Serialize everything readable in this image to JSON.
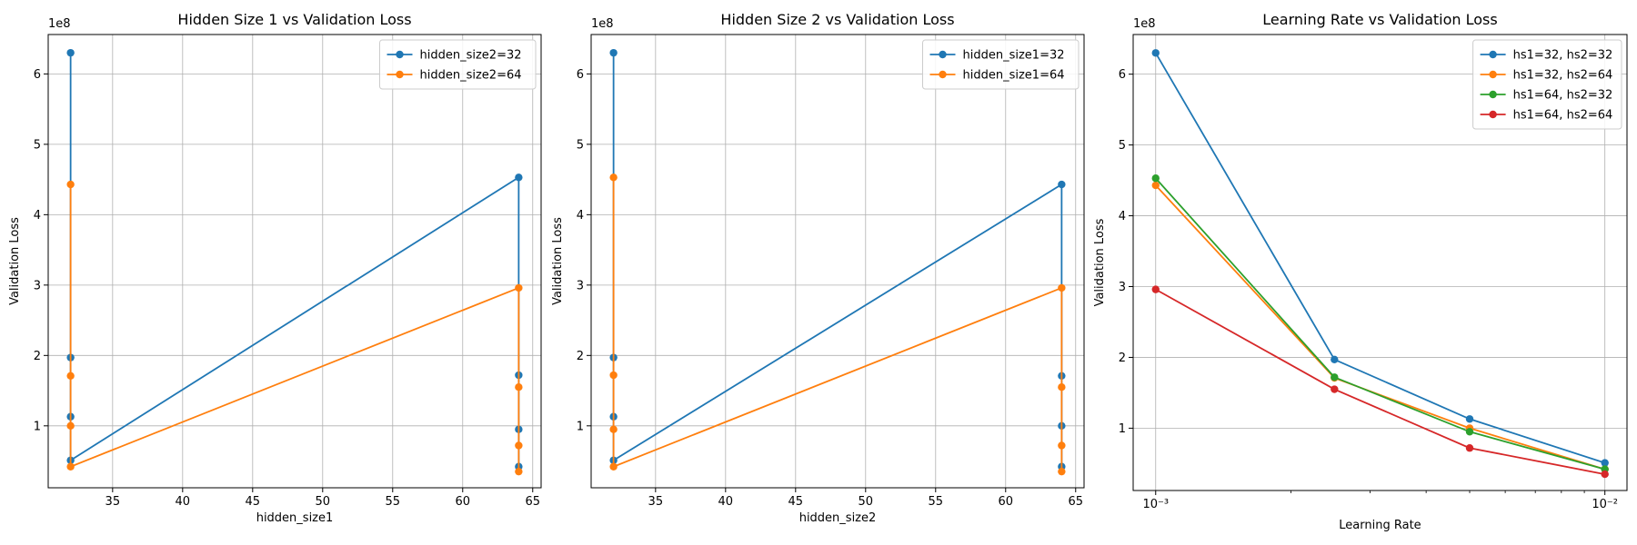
{
  "colors": {
    "C0": "#1f77b4",
    "C1": "#ff7f0e",
    "C2": "#2ca02c",
    "C3": "#d62728",
    "grid": "#b0b0b0"
  },
  "chart_data": [
    {
      "type": "line",
      "title": "Hidden Size 1 vs Validation Loss",
      "xlabel": "hidden_size1",
      "ylabel": "Validation Loss",
      "y_multiplier": "1e8",
      "xscale": "linear",
      "xlim": [
        30.4,
        65.6
      ],
      "ylim": [
        0.12,
        6.56
      ],
      "xticks": [
        35,
        40,
        45,
        50,
        55,
        60,
        65
      ],
      "xtick_labels": [
        "35",
        "40",
        "45",
        "50",
        "55",
        "60",
        "65"
      ],
      "yticks": [
        1,
        2,
        3,
        4,
        5,
        6
      ],
      "ytick_labels": [
        "1",
        "2",
        "3",
        "4",
        "5",
        "6"
      ],
      "grid": true,
      "legend": "upper right",
      "series": [
        {
          "name": "hidden_size2=32",
          "color": "#1f77b4",
          "x": [
            32,
            32,
            32,
            32,
            64,
            64,
            64,
            64
          ],
          "y": [
            6.3,
            1.97,
            1.13,
            0.51,
            4.53,
            1.72,
            0.95,
            0.42
          ]
        },
        {
          "name": "hidden_size2=64",
          "color": "#ff7f0e",
          "x": [
            32,
            32,
            32,
            32,
            64,
            64,
            64,
            64
          ],
          "y": [
            4.43,
            1.71,
            1.0,
            0.42,
            2.96,
            1.55,
            0.72,
            0.35
          ]
        }
      ]
    },
    {
      "type": "line",
      "title": "Hidden Size 2 vs Validation Loss",
      "xlabel": "hidden_size2",
      "ylabel": "Validation Loss",
      "y_multiplier": "1e8",
      "xscale": "linear",
      "xlim": [
        30.4,
        65.6
      ],
      "ylim": [
        0.12,
        6.56
      ],
      "xticks": [
        35,
        40,
        45,
        50,
        55,
        60,
        65
      ],
      "xtick_labels": [
        "35",
        "40",
        "45",
        "50",
        "55",
        "60",
        "65"
      ],
      "yticks": [
        1,
        2,
        3,
        4,
        5,
        6
      ],
      "ytick_labels": [
        "1",
        "2",
        "3",
        "4",
        "5",
        "6"
      ],
      "grid": true,
      "legend": "upper right",
      "series": [
        {
          "name": "hidden_size1=32",
          "color": "#1f77b4",
          "x": [
            32,
            32,
            32,
            32,
            64,
            64,
            64,
            64
          ],
          "y": [
            6.3,
            1.97,
            1.13,
            0.51,
            4.43,
            1.71,
            1.0,
            0.42
          ]
        },
        {
          "name": "hidden_size1=64",
          "color": "#ff7f0e",
          "x": [
            32,
            32,
            32,
            32,
            64,
            64,
            64,
            64
          ],
          "y": [
            4.53,
            1.72,
            0.95,
            0.42,
            2.96,
            1.55,
            0.72,
            0.35
          ]
        }
      ]
    },
    {
      "type": "line",
      "title": "Learning Rate vs Validation Loss",
      "xlabel": "Learning Rate",
      "ylabel": "Validation Loss",
      "y_multiplier": "1e8",
      "xscale": "log",
      "xlim": [
        0.000891,
        0.0112
      ],
      "ylim": [
        0.12,
        6.56
      ],
      "xticks": [
        0.001,
        0.01
      ],
      "xtick_labels": [
        "10⁻³",
        "10⁻²"
      ],
      "minor_xticks": [
        0.002,
        0.003,
        0.004,
        0.005,
        0.006,
        0.007,
        0.008,
        0.009
      ],
      "yticks": [
        1,
        2,
        3,
        4,
        5,
        6
      ],
      "ytick_labels": [
        "1",
        "2",
        "3",
        "4",
        "5",
        "6"
      ],
      "grid": true,
      "legend": "upper right",
      "series": [
        {
          "name": "hs1=32, hs2=32",
          "color": "#1f77b4",
          "x": [
            0.001,
            0.0025,
            0.005,
            0.01
          ],
          "y": [
            6.3,
            1.97,
            1.13,
            0.51
          ]
        },
        {
          "name": "hs1=32, hs2=64",
          "color": "#ff7f0e",
          "x": [
            0.001,
            0.0025,
            0.005,
            0.01
          ],
          "y": [
            4.43,
            1.71,
            1.0,
            0.42
          ]
        },
        {
          "name": "hs1=64, hs2=32",
          "color": "#2ca02c",
          "x": [
            0.001,
            0.0025,
            0.005,
            0.01
          ],
          "y": [
            4.53,
            1.72,
            0.95,
            0.42
          ]
        },
        {
          "name": "hs1=64, hs2=64",
          "color": "#d62728",
          "x": [
            0.001,
            0.0025,
            0.005,
            0.01
          ],
          "y": [
            2.96,
            1.55,
            0.72,
            0.35
          ]
        }
      ]
    }
  ]
}
